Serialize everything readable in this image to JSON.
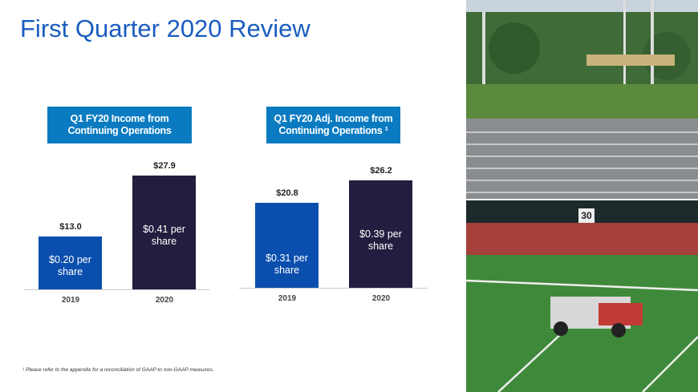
{
  "title": "First Quarter 2020 Review",
  "footnote": "¹ Please refer to the appendix for a reconciliation of GAAP to non-GAAP measures.",
  "photo": {
    "sign": "30"
  },
  "chart_data": [
    {
      "type": "bar",
      "title": "Q1 FY20 Income from Continuing Operations",
      "categories": [
        "2019",
        "2020"
      ],
      "values": [
        13.0,
        27.9
      ],
      "value_labels": [
        "$13.0",
        "$27.9"
      ],
      "bar_labels": [
        "$0.20 per share",
        "$0.41 per share"
      ],
      "colors": [
        "#0b4fae",
        "#231e3f"
      ],
      "ylim": [
        0,
        30
      ]
    },
    {
      "type": "bar",
      "title": "Q1 FY20 Adj. Income from Continuing Operations ¹",
      "categories": [
        "2019",
        "2020"
      ],
      "values": [
        20.8,
        26.2
      ],
      "value_labels": [
        "$20.8",
        "$26.2"
      ],
      "bar_labels": [
        "$0.31 per share",
        "$0.39 per share"
      ],
      "colors": [
        "#0b4fae",
        "#231e3f"
      ],
      "ylim": [
        0,
        30
      ]
    }
  ]
}
